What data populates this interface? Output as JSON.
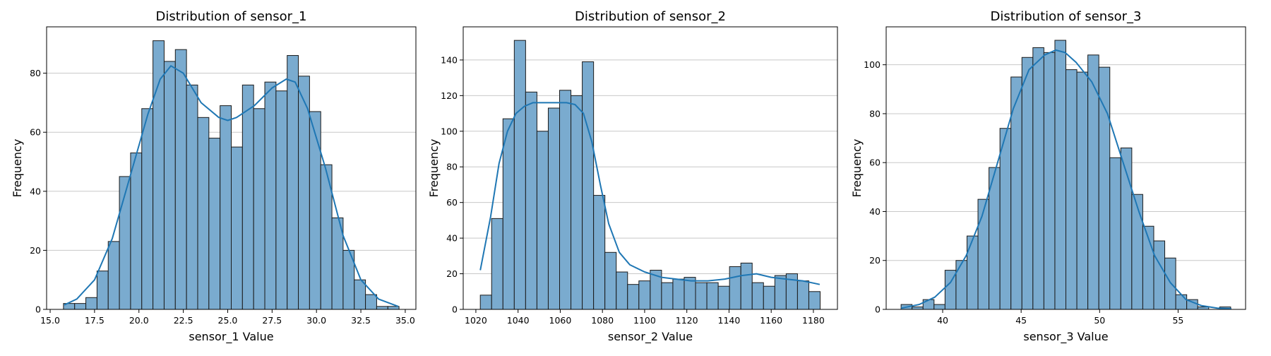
{
  "chart_data": [
    {
      "type": "histogram",
      "title": "Distribution of sensor_1",
      "xlabel": "sensor_1 Value",
      "ylabel": "Frequency",
      "xlim": [
        14.8,
        35.6
      ],
      "ylim": [
        0,
        95.7
      ],
      "xticks": [
        15.0,
        17.5,
        20.0,
        22.5,
        25.0,
        27.5,
        30.0,
        32.5,
        35.0
      ],
      "xtick_labels": [
        "15.0",
        "17.5",
        "20.0",
        "22.5",
        "25.0",
        "27.5",
        "30.0",
        "32.5",
        "35.0"
      ],
      "yticks": [
        0,
        20,
        40,
        60,
        80
      ],
      "bin_start": 15.75,
      "bin_width": 0.63,
      "counts": [
        2,
        2,
        4,
        13,
        23,
        45,
        53,
        68,
        91,
        84,
        88,
        76,
        65,
        58,
        69,
        55,
        76,
        68,
        77,
        74,
        86,
        79,
        67,
        49,
        31,
        20,
        10,
        5,
        1,
        1
      ],
      "kde": {
        "x": [
          15.8,
          16.5,
          17.5,
          18.5,
          19.5,
          20.5,
          21.2,
          21.8,
          22.5,
          23.5,
          24.5,
          25.0,
          25.5,
          26.5,
          27.5,
          28.3,
          28.8,
          29.5,
          30.5,
          31.5,
          32.5,
          33.5,
          34.6
        ],
        "y": [
          1.5,
          3.5,
          10,
          24,
          45,
          66,
          78,
          82.5,
          80,
          70,
          65,
          64,
          65,
          69,
          75,
          78,
          77,
          68,
          48,
          25,
          10,
          3.5,
          1
        ]
      },
      "grid": "y",
      "bar_color": "#7aabcf",
      "line_color": "#1f77b4"
    },
    {
      "type": "histogram",
      "title": "Distribution of sensor_2",
      "xlabel": "sensor_2 Value",
      "ylabel": "Frequency",
      "xlim": [
        1014,
        1191.4
      ],
      "ylim": [
        0,
        158.6
      ],
      "xticks": [
        1020,
        1040,
        1060,
        1080,
        1100,
        1120,
        1140,
        1160,
        1180
      ],
      "xtick_labels": [
        "1020",
        "1040",
        "1060",
        "1080",
        "1100",
        "1120",
        "1140",
        "1160",
        "1180"
      ],
      "yticks": [
        0,
        20,
        40,
        60,
        80,
        100,
        120,
        140
      ],
      "bin_start": 1022.1,
      "bin_width": 5.37,
      "counts": [
        8,
        51,
        107,
        151,
        122,
        100,
        113,
        123,
        120,
        139,
        64,
        32,
        21,
        14,
        16,
        22,
        15,
        17,
        18,
        15,
        15,
        13,
        24,
        26,
        15,
        13,
        19,
        20,
        16,
        10
      ],
      "kde": {
        "x": [
          1022.1,
          1027,
          1031,
          1035,
          1039,
          1043,
          1047,
          1051,
          1055,
          1059,
          1063,
          1067,
          1071,
          1075,
          1079,
          1083,
          1088,
          1093,
          1100,
          1108,
          1115,
          1122,
          1130,
          1138,
          1146,
          1153,
          1160,
          1167,
          1175,
          1183
        ],
        "y": [
          22,
          52,
          82,
          100,
          110,
          114,
          116,
          116,
          116,
          116,
          116,
          115,
          110,
          94,
          70,
          48,
          32,
          25,
          21,
          18,
          17,
          16,
          16,
          17,
          19,
          20,
          18,
          17,
          16,
          14
        ]
      },
      "grid": "y",
      "bar_color": "#7aabcf",
      "line_color": "#1f77b4"
    },
    {
      "type": "histogram",
      "title": "Distribution of sensor_3",
      "xlabel": "sensor_3 Value",
      "ylabel": "Frequency",
      "xlim": [
        36.4,
        59.3
      ],
      "ylim": [
        0,
        115.5
      ],
      "xticks": [
        40,
        45,
        50,
        55
      ],
      "xtick_labels": [
        "40",
        "45",
        "50",
        "55"
      ],
      "yticks": [
        0,
        20,
        40,
        60,
        80,
        100
      ],
      "bin_start": 37.35,
      "bin_width": 0.7,
      "counts": [
        2,
        1,
        4,
        2,
        16,
        20,
        30,
        45,
        58,
        74,
        95,
        103,
        107,
        105,
        110,
        98,
        97,
        104,
        99,
        62,
        66,
        47,
        34,
        28,
        21,
        6,
        4,
        1,
        0,
        1
      ],
      "kde": {
        "x": [
          37.35,
          38.5,
          39.5,
          40.5,
          41.5,
          42.5,
          43.5,
          44.5,
          45.5,
          46.5,
          47.2,
          47.8,
          48.5,
          49.5,
          50.5,
          51.5,
          52.5,
          53.5,
          54.5,
          55.5,
          56.5,
          57.5,
          58.4
        ],
        "y": [
          0.5,
          2,
          5,
          11,
          22,
          38,
          60,
          82,
          98,
          104,
          106,
          105,
          101,
          93,
          80,
          60,
          40,
          22,
          11,
          4,
          1.5,
          0.5,
          0.2
        ]
      },
      "grid": "y",
      "bar_color": "#7aabcf",
      "line_color": "#1f77b4"
    }
  ]
}
